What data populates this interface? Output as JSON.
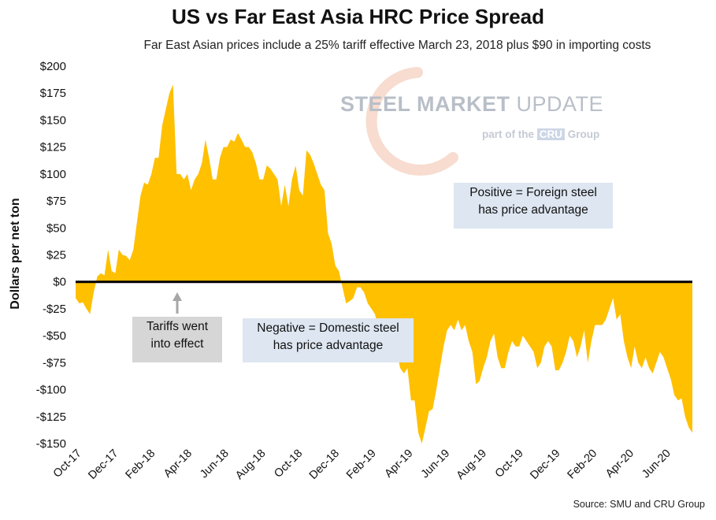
{
  "title": "US vs Far East Asia HRC Price Spread",
  "subtitle": "Far East Asian prices include a 25% tariff effective March 23, 2018 plus $90 in importing costs",
  "source": "Source: SMU and CRU Group",
  "logo": {
    "main1": "STEEL MARKET",
    "main2": "UPDATE",
    "sub1": "part of the",
    "sub2": "CRU",
    "sub3": "Group"
  },
  "annotations": {
    "positive": [
      "Positive = Foreign steel",
      "has price advantage"
    ],
    "negative": [
      "Negative = Domestic steel",
      "has price advantage"
    ],
    "tariffs": [
      "Tariffs went",
      "into effect"
    ]
  },
  "colors": {
    "fill": "#FFC000",
    "zero_line": "#000000",
    "annotation_box": "#DDE6F1",
    "tariff_box": "#D6D6D6",
    "arrow": "#A6A6A6"
  },
  "chart_data": {
    "type": "area",
    "ylabel": "Dollars per net ton",
    "xlabel": "",
    "ylim": [
      -150,
      200
    ],
    "yticks": [
      200,
      175,
      150,
      125,
      100,
      75,
      50,
      25,
      0,
      -25,
      -50,
      -75,
      -100,
      -125,
      -150
    ],
    "ytick_labels": [
      "$200",
      "$175",
      "$150",
      "$125",
      "$100",
      "$75",
      "$50",
      "$25",
      "$0",
      "-$25",
      "-$50",
      "-$75",
      "-$100",
      "-$125",
      "-$150"
    ],
    "xtick_labels": [
      "Oct-17",
      "Dec-17",
      "Feb-18",
      "Apr-18",
      "Jun-18",
      "Aug-18",
      "Oct-18",
      "Dec-18",
      "Feb-19",
      "Apr-19",
      "Jun-19",
      "Aug-19",
      "Oct-19",
      "Dec-19",
      "Feb-20",
      "Apr-20",
      "Jun-20"
    ],
    "grid": false,
    "series": [
      {
        "values": [
          -15,
          -20,
          -19,
          -25,
          -30,
          -10,
          5,
          8,
          6,
          30,
          10,
          8,
          30,
          25,
          24,
          20,
          30,
          55,
          80,
          92,
          90,
          100,
          115,
          115,
          145,
          160,
          175,
          183,
          100,
          100,
          95,
          100,
          85,
          95,
          100,
          110,
          132,
          115,
          95,
          95,
          115,
          125,
          125,
          132,
          130,
          138,
          132,
          125,
          125,
          120,
          110,
          95,
          95,
          108,
          105,
          100,
          95,
          70,
          90,
          70,
          95,
          108,
          85,
          80,
          122,
          118,
          110,
          100,
          90,
          85,
          45,
          35,
          15,
          10,
          -5,
          -20,
          -18,
          -15,
          -5,
          -5,
          -10,
          -20,
          -25,
          -30,
          -45,
          -65,
          -65,
          -58,
          -58,
          -65,
          -80,
          -85,
          -80,
          -110,
          -110,
          -140,
          -150,
          -135,
          -120,
          -118,
          -100,
          -80,
          -60,
          -45,
          -40,
          -45,
          -35,
          -45,
          -40,
          -55,
          -65,
          -95,
          -92,
          -80,
          -70,
          -55,
          -48,
          -70,
          -80,
          -80,
          -65,
          -55,
          -60,
          -60,
          -50,
          -55,
          -60,
          -65,
          -80,
          -75,
          -60,
          -55,
          -60,
          -82,
          -82,
          -75,
          -65,
          -50,
          -55,
          -70,
          -60,
          -45,
          -75,
          -55,
          -40,
          -40,
          -40,
          -35,
          -25,
          -15,
          -35,
          -30,
          -55,
          -70,
          -80,
          -60,
          -75,
          -80,
          -70,
          -80,
          -85,
          -75,
          -65,
          -70,
          -80,
          -90,
          -105,
          -110,
          -108,
          -125,
          -135,
          -140
        ]
      }
    ]
  }
}
